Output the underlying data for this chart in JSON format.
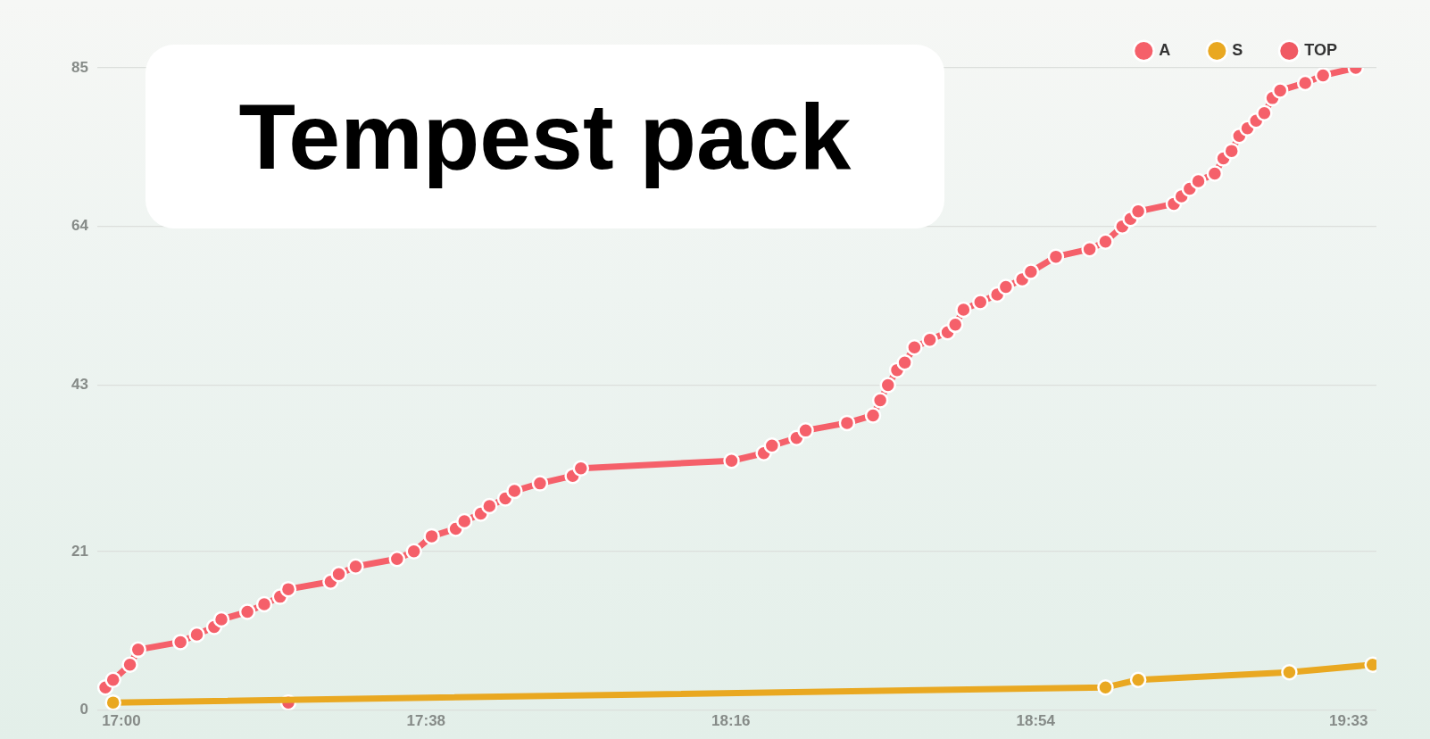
{
  "chart_data": {
    "type": "line",
    "title": "Tempest pack",
    "xlim": [
      16.95,
      19.608
    ],
    "xticks": [
      {
        "value": 17,
        "label": "17:00"
      },
      {
        "value": 17.6333,
        "label": "17:38"
      },
      {
        "value": 18.2667,
        "label": "18:16"
      },
      {
        "value": 18.9,
        "label": "18:54"
      },
      {
        "value": 19.55,
        "label": "19:33"
      }
    ],
    "ylim": [
      0,
      85
    ],
    "yticks": [
      0,
      21,
      43,
      64,
      85
    ],
    "grid": "y",
    "legend": "top right",
    "marker": "circle",
    "line_style": "solid",
    "series": [
      {
        "name": "A",
        "color": "#f5606a",
        "x": [
          16.967,
          16.983,
          17.018,
          17.035,
          17.123,
          17.157,
          17.193,
          17.208,
          17.262,
          17.297,
          17.33,
          17.347,
          17.435,
          17.452,
          17.487,
          17.573,
          17.608,
          17.645,
          17.695,
          17.713,
          17.747,
          17.765,
          17.798,
          17.817,
          17.87,
          17.938,
          17.955,
          18.268,
          18.335,
          18.352,
          18.403,
          18.422,
          18.508,
          18.562,
          18.577,
          18.593,
          18.612,
          18.628,
          18.648,
          18.68,
          18.717,
          18.733,
          18.75,
          18.785,
          18.82,
          18.838,
          18.872,
          18.89,
          18.942,
          19.012,
          19.045,
          19.08,
          19.097,
          19.113,
          19.187,
          19.203,
          19.22,
          19.238,
          19.272,
          19.29,
          19.307,
          19.323,
          19.34,
          19.358,
          19.375,
          19.392,
          19.408,
          19.46,
          19.497,
          19.565
        ],
        "values": [
          3,
          4,
          6,
          8,
          9,
          10,
          11,
          12,
          13,
          14,
          15,
          16,
          17,
          18,
          19,
          20,
          21,
          23,
          24,
          25,
          26,
          27,
          28,
          29,
          30,
          31,
          32,
          33,
          34,
          35,
          36,
          37,
          38,
          39,
          41,
          43,
          45,
          46,
          48,
          49,
          50,
          51,
          53,
          54,
          55,
          56,
          57,
          58,
          60,
          61,
          62,
          64,
          65,
          66,
          67,
          68,
          69,
          70,
          71,
          73,
          74,
          76,
          77,
          78,
          79,
          81,
          82,
          83,
          84,
          85
        ]
      },
      {
        "name": "S",
        "color": "#e9a821",
        "x": [
          16.983,
          19.045,
          19.113,
          19.427,
          19.6
        ],
        "values": [
          1,
          3,
          4,
          5,
          6
        ]
      },
      {
        "name": "TOP",
        "color": "#f05a64",
        "x": [
          17.347
        ],
        "values": [
          1
        ]
      }
    ]
  }
}
